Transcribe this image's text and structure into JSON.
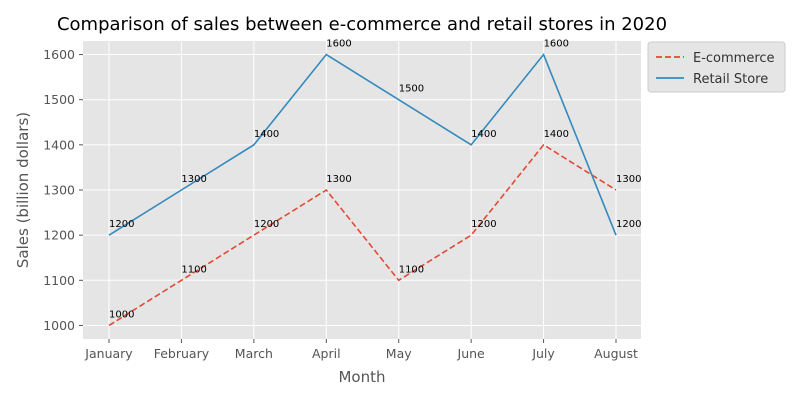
{
  "chart_data": {
    "type": "line",
    "title": "Comparison of sales between e-commerce and retail stores in 2020",
    "xlabel": "Month",
    "ylabel": "Sales (billion dollars)",
    "categories": [
      "January",
      "February",
      "March",
      "April",
      "May",
      "June",
      "July",
      "August"
    ],
    "yticks": [
      "1000",
      "1100",
      "1200",
      "1300",
      "1400",
      "1500",
      "1600"
    ],
    "ylim": [
      970,
      1630
    ],
    "grid": true,
    "legend_position": "outside-top-right",
    "series": [
      {
        "name": "E-commerce",
        "values": [
          1000,
          1100,
          1200,
          1300,
          1100,
          1200,
          1400,
          1300
        ],
        "color": "#E24A33",
        "style": "dashed"
      },
      {
        "name": "Retail Store",
        "values": [
          1200,
          1300,
          1400,
          1600,
          1500,
          1400,
          1600,
          1200
        ],
        "color": "#348ABD",
        "style": "solid"
      }
    ],
    "data_labels": true
  }
}
